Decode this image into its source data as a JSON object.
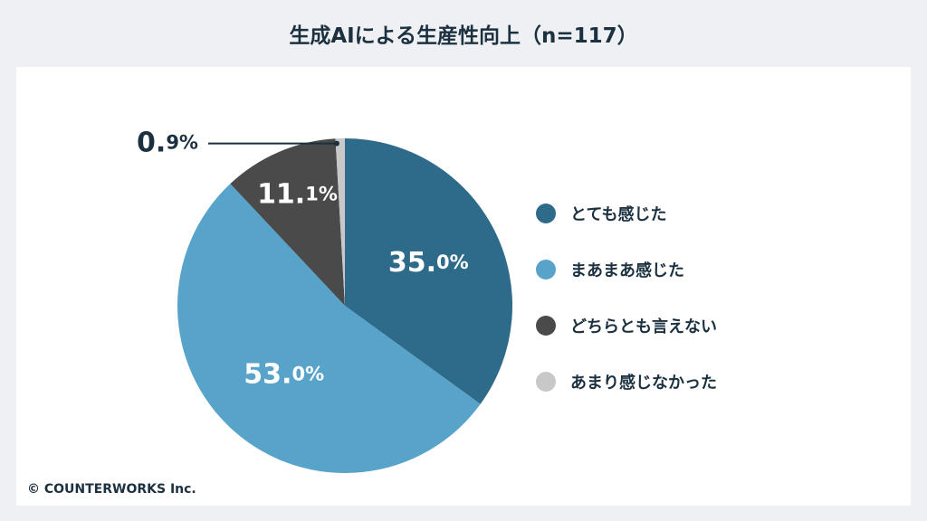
{
  "title": "生成AIによる生産性向上（n=117）",
  "copyright": "© COUNTERWORKS Inc.",
  "chart_data": {
    "type": "pie",
    "title": "生成AIによる生産性向上（n=117）",
    "start": "top",
    "direction": "clockwise",
    "legend_position": "right",
    "slices": [
      {
        "label": "とても感じた",
        "value": 35.0,
        "display": "35.0%",
        "color": "#2e6b8a"
      },
      {
        "label": "まあまあ感じた",
        "value": 53.0,
        "display": "53.0%",
        "color": "#58a3c9"
      },
      {
        "label": "どちらとも言えない",
        "value": 11.1,
        "display": "11.1%",
        "color": "#4a4a4a"
      },
      {
        "label": "あまり感じなかった",
        "value": 0.9,
        "display": "0.9%",
        "color": "#c8c8c8"
      }
    ]
  }
}
